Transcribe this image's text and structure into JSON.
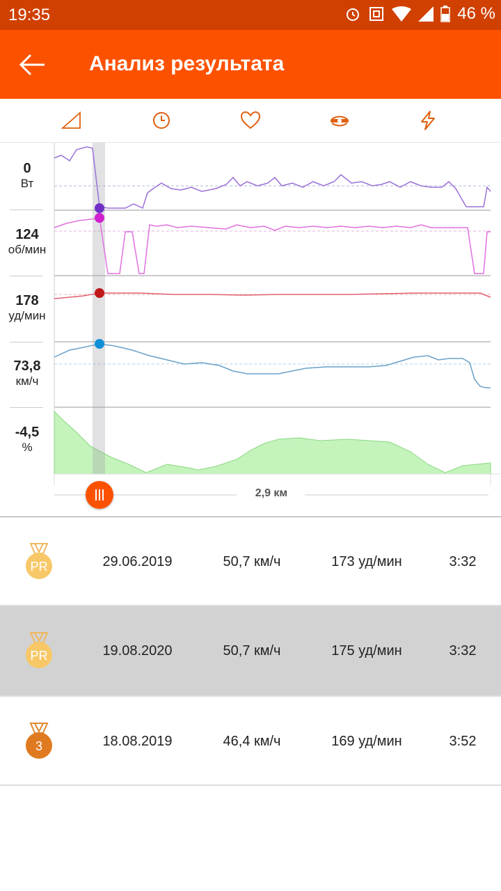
{
  "status": {
    "time": "19:35",
    "battery": "46 %"
  },
  "header": {
    "title": "Анализ результата"
  },
  "tabs": [
    "elevation-icon",
    "clock-icon",
    "heart-icon",
    "cadence-icon",
    "power-icon"
  ],
  "labels": [
    {
      "value": "0",
      "unit": "Вт"
    },
    {
      "value": "124",
      "unit": "об/мин"
    },
    {
      "value": "178",
      "unit": "уд/мин"
    },
    {
      "value": "73,8",
      "unit": "км/ч"
    },
    {
      "value": "-4,5",
      "unit": "%"
    }
  ],
  "scrubber": {
    "distance": "2,9 км"
  },
  "efforts": [
    {
      "medal": "PR",
      "date": "29.06.2019",
      "speed": "50,7 км/ч",
      "hr": "173 уд/мин",
      "time": "3:32",
      "selected": false
    },
    {
      "medal": "PR",
      "date": "19.08.2020",
      "speed": "50,7 км/ч",
      "hr": "175 уд/мин",
      "time": "3:32",
      "selected": true
    },
    {
      "medal": "3",
      "date": "18.08.2019",
      "speed": "46,4 км/ч",
      "hr": "169 уд/мин",
      "time": "3:52",
      "selected": false
    }
  ],
  "colors": {
    "accent": "#fc5200",
    "status": "#d04000",
    "power": "#9a70d8",
    "cadence": "#e070e0",
    "heart": "#e06070",
    "speed": "#6aa0c8",
    "grade": "#b8f0b0"
  }
}
